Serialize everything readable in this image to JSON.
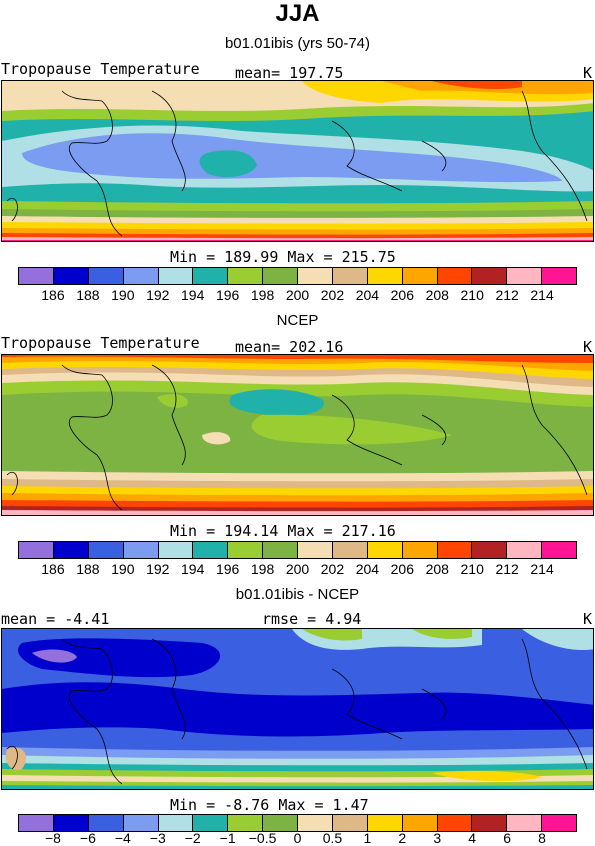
{
  "page": {
    "season": "JJA",
    "model_title": "b01.01ibis (yrs 50-74)",
    "obs_title": "NCEP",
    "diff_title": "b01.01ibis - NCEP"
  },
  "panels": [
    {
      "left_label": "Tropopause Temperature",
      "stat_label": "mean= 197.75",
      "units": "K",
      "range_label": "Min = 189.99 Max = 215.75"
    },
    {
      "left_label": "Tropopause Temperature",
      "stat_label": "mean= 202.16",
      "units": "K",
      "range_label": "Min = 194.14 Max = 217.16"
    },
    {
      "left_label": "mean = -4.41",
      "stat_label": "rmse = 4.94",
      "units": "K",
      "range_label": "Min = -8.76 Max = 1.47"
    }
  ],
  "colorbars": {
    "abs_colors": [
      "#9370db",
      "#0000cd",
      "#3a5fe0",
      "#7b9cf0",
      "#b0e0e6",
      "#20b2aa",
      "#9acd32",
      "#7cb342",
      "#f5deb3",
      "#deb887",
      "#ffd700",
      "#ffa500",
      "#ff4500",
      "#b22222",
      "#ffb6c1",
      "#ff1493"
    ],
    "abs_labels": [
      "186",
      "188",
      "190",
      "192",
      "194",
      "196",
      "198",
      "200",
      "202",
      "204",
      "206",
      "208",
      "210",
      "212",
      "214"
    ],
    "diff_colors": [
      "#9370db",
      "#0000cd",
      "#3a5fe0",
      "#7b9cf0",
      "#b0e0e6",
      "#20b2aa",
      "#9acd32",
      "#7cb342",
      "#f5deb3",
      "#deb887",
      "#ffd700",
      "#ffa500",
      "#ff4500",
      "#b22222",
      "#ffb6c1",
      "#ff1493"
    ],
    "diff_labels": [
      "−8",
      "−6",
      "−4",
      "−3",
      "−2",
      "−1",
      "−0.5",
      "0",
      "0.5",
      "1",
      "2",
      "3",
      "4",
      "6",
      "8"
    ]
  }
}
